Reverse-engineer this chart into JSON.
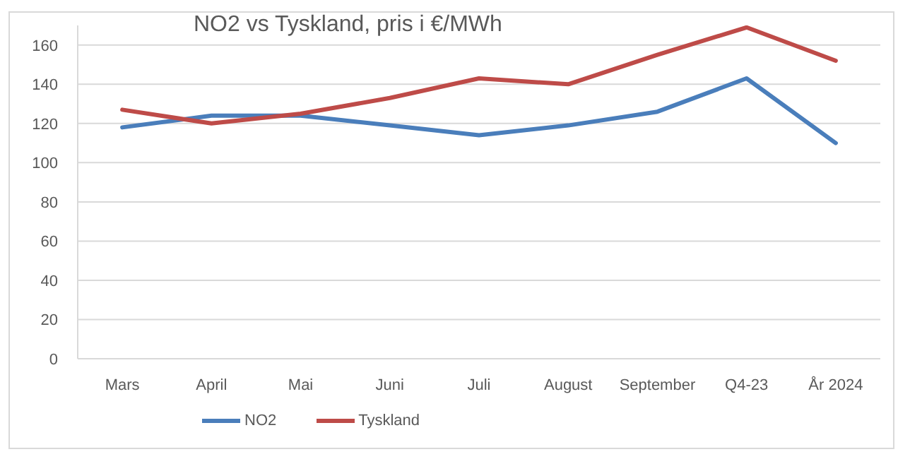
{
  "chart_data": {
    "type": "line",
    "title": "NO2 vs Tyskland, pris i €/MWh",
    "categories": [
      "Mars",
      "April",
      "Mai",
      "Juni",
      "Juli",
      "August",
      "September",
      "Q4-23",
      "År 2024"
    ],
    "series": [
      {
        "name": "NO2",
        "color": "#4a7ebb",
        "values": [
          118,
          124,
          124,
          119,
          114,
          119,
          126,
          143,
          110
        ]
      },
      {
        "name": "Tyskland",
        "color": "#be4b48",
        "values": [
          127,
          120,
          125,
          133,
          143,
          140,
          155,
          169,
          152
        ]
      }
    ],
    "ylim": [
      0,
      170
    ],
    "yticks": [
      0,
      20,
      40,
      60,
      80,
      100,
      120,
      140,
      160
    ],
    "grid": "y",
    "legend": "bottom",
    "line_style": "solid"
  }
}
